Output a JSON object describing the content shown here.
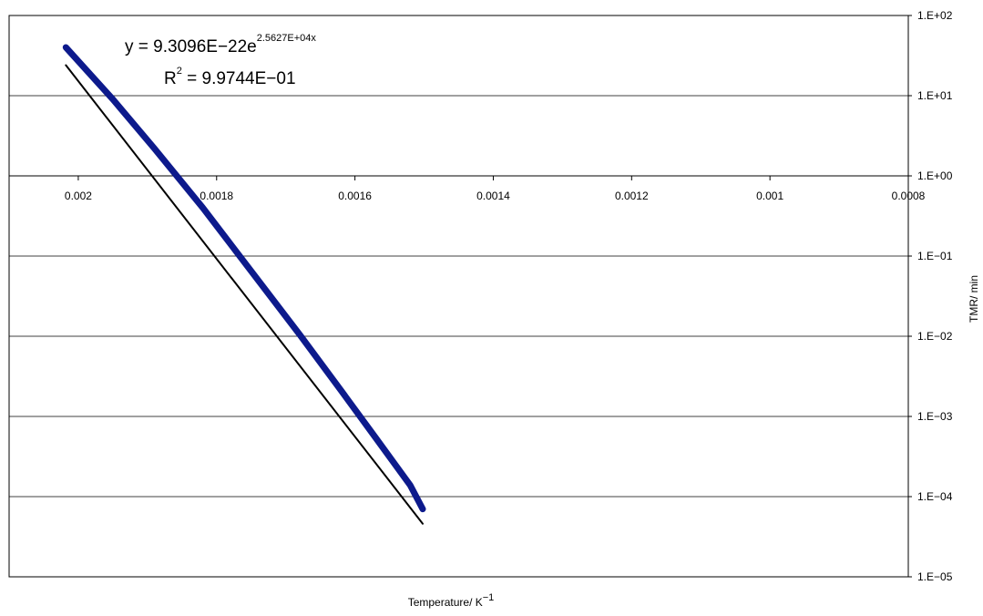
{
  "chart_data": {
    "type": "line",
    "title": "",
    "xlabel": "Temperature/ K",
    "xlabel_superscript": "−1",
    "ylabel": "TMR/ min",
    "x_reversed": true,
    "y_scale": "log",
    "xlim": [
      0.0021,
      0.0008
    ],
    "ylim": [
      1e-05,
      100
    ],
    "x_ticks": [
      {
        "value": 0.002,
        "label": "0.002"
      },
      {
        "value": 0.0018,
        "label": "0.0018"
      },
      {
        "value": 0.0016,
        "label": "0.0016"
      },
      {
        "value": 0.0014,
        "label": "0.0014"
      },
      {
        "value": 0.0012,
        "label": "0.0012"
      },
      {
        "value": 0.001,
        "label": "0.001"
      },
      {
        "value": 0.0008,
        "label": "0.0008"
      }
    ],
    "y_ticks": [
      {
        "value": 100,
        "label": "1.E+02"
      },
      {
        "value": 10,
        "label": "1.E+01"
      },
      {
        "value": 1,
        "label": "1.E+00"
      },
      {
        "value": 0.1,
        "label": "1.E−01"
      },
      {
        "value": 0.01,
        "label": "1.E−02"
      },
      {
        "value": 0.001,
        "label": "1.E−03"
      },
      {
        "value": 0.0001,
        "label": "1.E−04"
      },
      {
        "value": 1e-05,
        "label": "1.E−05"
      }
    ],
    "grid": {
      "horizontal": true,
      "vertical": false
    },
    "legend": "none",
    "series": [
      {
        "color": "#0d1a8c",
        "x": [
          0.002018,
          0.00195,
          0.00189,
          0.00182,
          0.00175,
          0.00168,
          0.00162,
          0.00157,
          0.00152,
          0.001502
        ],
        "y": [
          40,
          9,
          2.2,
          0.4,
          0.065,
          0.0105,
          0.0021,
          0.00054,
          0.000138,
          7e-05
        ]
      },
      {
        "color": "#000000",
        "trendline": true,
        "x": [
          0.002018,
          0.001502
        ],
        "y": [
          24,
          4.6e-05
        ]
      }
    ],
    "annotation": {
      "equation_base": "y = 9.3096E−22e",
      "equation_exponent": "2.5627E+04x",
      "r2_base": "R",
      "r2_sup": "2",
      "r2_rest": " = 9.9744E−01"
    }
  }
}
